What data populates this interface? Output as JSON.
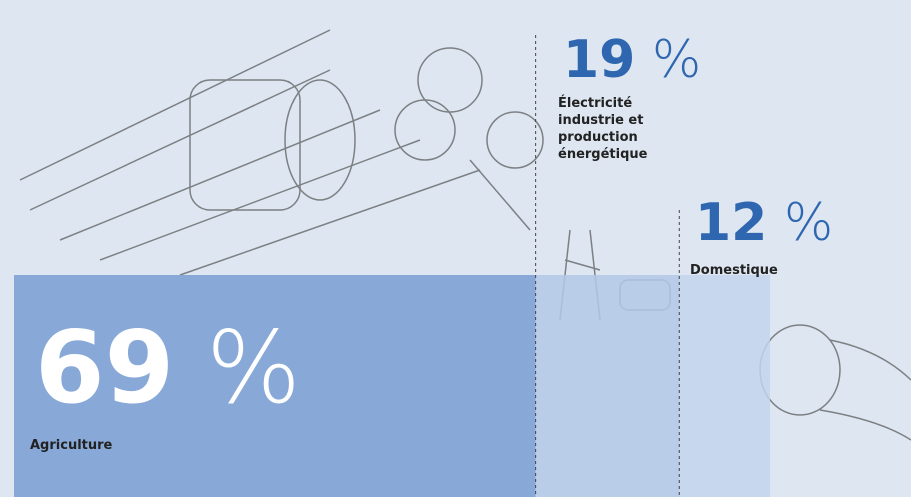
{
  "chart_data": {
    "type": "proportion",
    "categories": [
      "Agriculture",
      "Électricité industrie et production énergétique",
      "Domestique"
    ],
    "values": [
      69,
      19,
      12
    ],
    "unit": "%",
    "colors": [
      "#88a9d8",
      "#b3c8e7",
      "#c3d4ec"
    ]
  }
}
